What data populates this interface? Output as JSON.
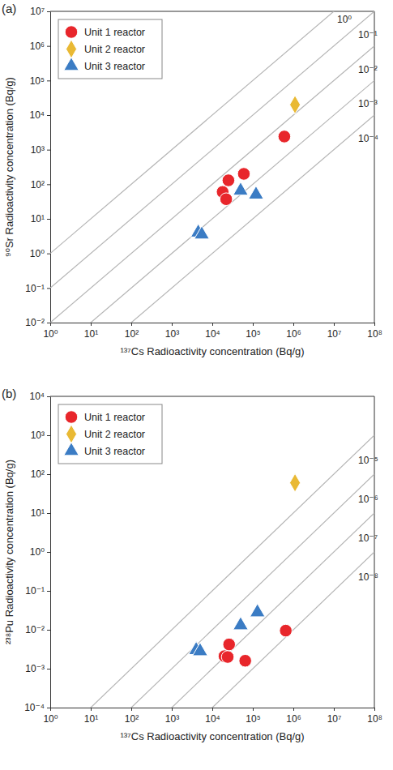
{
  "chart_data": [
    {
      "type": "scatter",
      "title": "(a)",
      "xlabel": "¹³⁷Cs Radioactivity concentration (Bq/g)",
      "ylabel": "⁹⁰Sr Radioactivity concentration (Bq/g)",
      "log": true,
      "grid": false,
      "legend": "upper left",
      "xlim": [
        1,
        100000000
      ],
      "ylim": [
        0.01,
        10000000
      ],
      "xticks": [
        {
          "value": 1,
          "label": "10⁰"
        },
        {
          "value": 10,
          "label": "10¹"
        },
        {
          "value": 100,
          "label": "10²"
        },
        {
          "value": 1000,
          "label": "10³"
        },
        {
          "value": 10000,
          "label": "10⁴"
        },
        {
          "value": 100000,
          "label": "10⁵"
        },
        {
          "value": 1000000,
          "label": "10⁶"
        },
        {
          "value": 10000000,
          "label": "10⁷"
        },
        {
          "value": 100000000,
          "label": "10⁸"
        }
      ],
      "yticks": [
        {
          "value": 0.01,
          "label": "10⁻²"
        },
        {
          "value": 0.1,
          "label": "10⁻¹"
        },
        {
          "value": 1,
          "label": "10⁰"
        },
        {
          "value": 10,
          "label": "10¹"
        },
        {
          "value": 100,
          "label": "10²"
        },
        {
          "value": 1000,
          "label": "10³"
        },
        {
          "value": 10000,
          "label": "10⁴"
        },
        {
          "value": 100000,
          "label": "10⁵"
        },
        {
          "value": 1000000,
          "label": "10⁶"
        },
        {
          "value": 10000000,
          "label": "10⁷"
        }
      ],
      "annotations": [
        {
          "ratio": 1,
          "label": "10⁰"
        },
        {
          "ratio": 0.1,
          "label": "10⁻¹"
        },
        {
          "ratio": 0.01,
          "label": "10⁻²"
        },
        {
          "ratio": 0.001,
          "label": "10⁻³"
        },
        {
          "ratio": 0.0001,
          "label": "10⁻⁴"
        }
      ],
      "series": [
        {
          "name": "Unit 1 reactor",
          "color": "#e8262b",
          "marker": "circle",
          "x": [
            25000,
            18000,
            22000,
            60000,
            600000
          ],
          "values": [
            130,
            60,
            37,
            200,
            2400
          ]
        },
        {
          "name": "Unit 2 reactor",
          "color": "#e9b934",
          "marker": "diamond",
          "x": [
            1100000
          ],
          "values": [
            20000
          ]
        },
        {
          "name": "Unit 3 reactor",
          "color": "#3b7cc4",
          "marker": "triangle",
          "x": [
            4500,
            5500,
            50000,
            120000
          ],
          "values": [
            4,
            3.5,
            65,
            50
          ]
        }
      ]
    },
    {
      "type": "scatter",
      "title": "(b)",
      "xlabel": "¹³⁷Cs Radioactivity concentration (Bq/g)",
      "ylabel": "²³⁸Pu Radioactivity concentration (Bq/g)",
      "log": true,
      "grid": false,
      "legend": "upper left",
      "xlim": [
        1,
        100000000
      ],
      "ylim": [
        0.0001,
        10000
      ],
      "xticks": [
        {
          "value": 1,
          "label": "10⁰"
        },
        {
          "value": 10,
          "label": "10¹"
        },
        {
          "value": 100,
          "label": "10²"
        },
        {
          "value": 1000,
          "label": "10³"
        },
        {
          "value": 10000,
          "label": "10⁴"
        },
        {
          "value": 100000,
          "label": "10⁵"
        },
        {
          "value": 1000000,
          "label": "10⁶"
        },
        {
          "value": 10000000,
          "label": "10⁷"
        },
        {
          "value": 100000000,
          "label": "10⁸"
        }
      ],
      "yticks": [
        {
          "value": 0.0001,
          "label": "10⁻⁴"
        },
        {
          "value": 0.001,
          "label": "10⁻³"
        },
        {
          "value": 0.01,
          "label": "10⁻²"
        },
        {
          "value": 0.1,
          "label": "10⁻¹"
        },
        {
          "value": 1,
          "label": "10⁰"
        },
        {
          "value": 10,
          "label": "10¹"
        },
        {
          "value": 100,
          "label": "10²"
        },
        {
          "value": 1000,
          "label": "10³"
        },
        {
          "value": 10000,
          "label": "10⁴"
        }
      ],
      "annotations": [
        {
          "ratio": 1e-05,
          "label": "10⁻⁵"
        },
        {
          "ratio": 1e-06,
          "label": "10⁻⁶"
        },
        {
          "ratio": 1e-07,
          "label": "10⁻⁷"
        },
        {
          "ratio": 1e-08,
          "label": "10⁻⁸"
        }
      ],
      "series": [
        {
          "name": "Unit 1 reactor",
          "color": "#e8262b",
          "marker": "circle",
          "x": [
            20000,
            24000,
            26000,
            65000,
            650000
          ],
          "values": [
            0.0021,
            0.002,
            0.0042,
            0.0016,
            0.0095
          ]
        },
        {
          "name": "Unit 2 reactor",
          "color": "#e9b934",
          "marker": "diamond",
          "x": [
            1100000
          ],
          "values": [
            60
          ]
        },
        {
          "name": "Unit 3 reactor",
          "color": "#3b7cc4",
          "marker": "triangle",
          "x": [
            4000,
            5000,
            50000,
            130000
          ],
          "values": [
            0.003,
            0.0028,
            0.013,
            0.028
          ]
        }
      ]
    }
  ]
}
